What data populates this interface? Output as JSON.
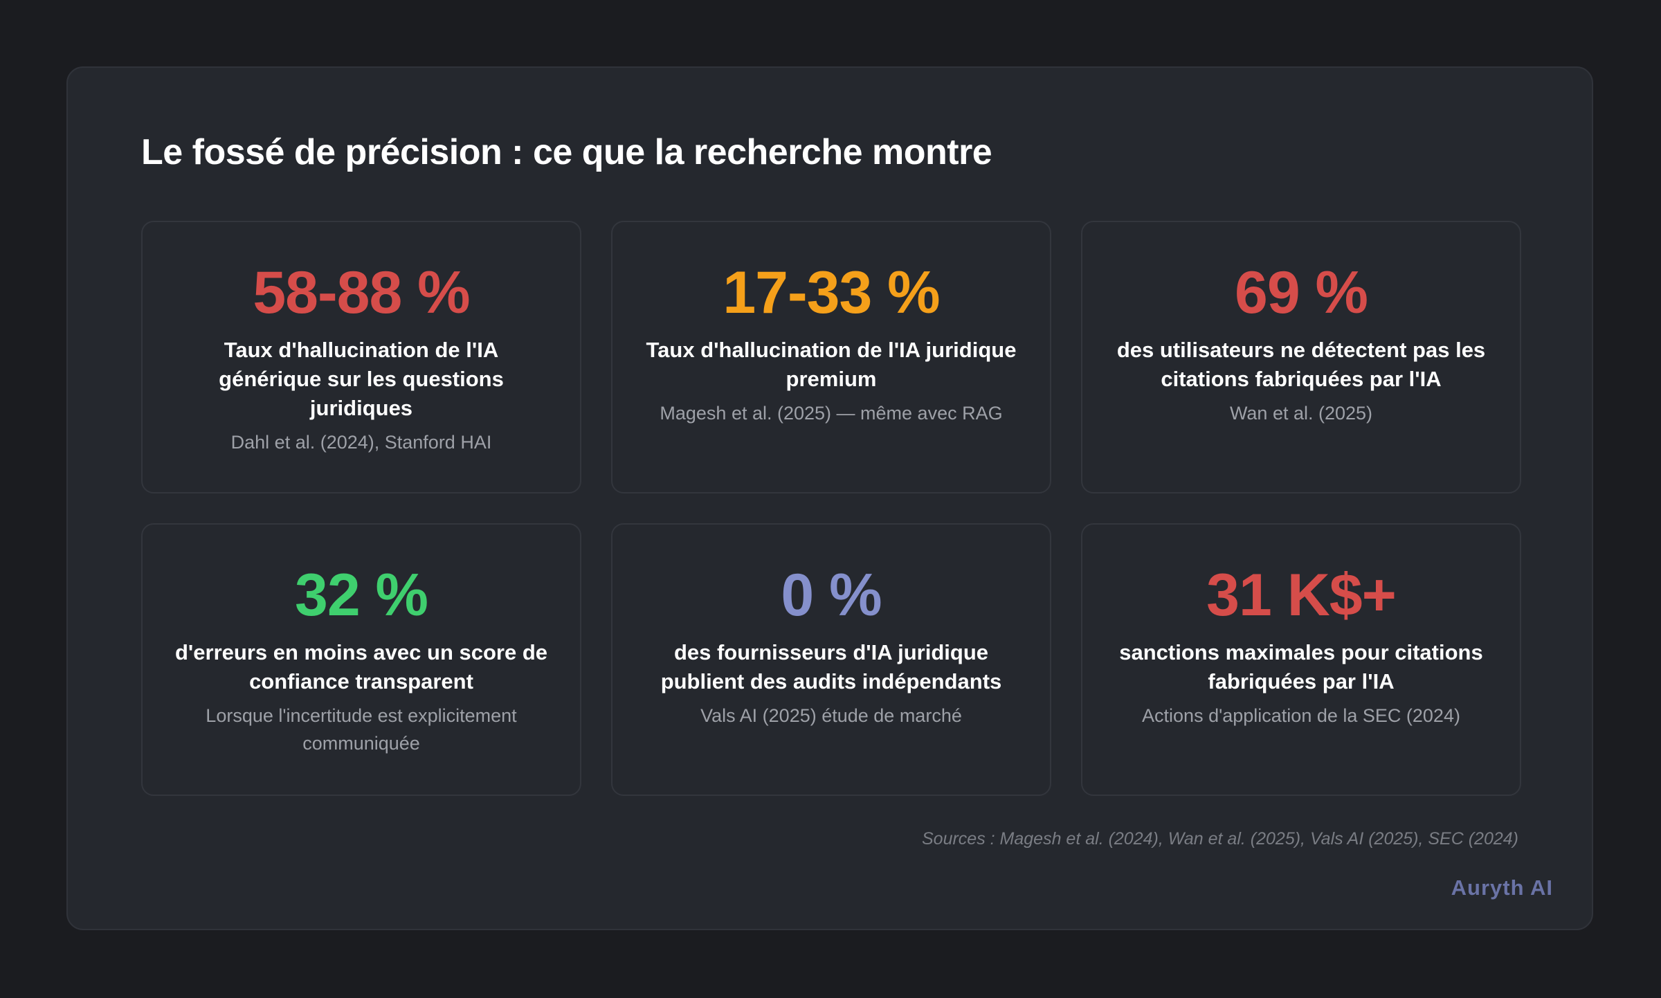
{
  "title": "Le fossé de précision : ce que la recherche montre",
  "colors": {
    "red": "#d64d4a",
    "orange": "#f5a01a",
    "green": "#3fcf6e",
    "slate": "#8590cc"
  },
  "cards": [
    {
      "value": "58-88 %",
      "color": "#d64d4a",
      "label": "Taux d'hallucination de l'IA générique sur les questions juridiques",
      "source": "Dahl et al. (2024), Stanford HAI"
    },
    {
      "value": "17-33 %",
      "color": "#f5a01a",
      "label": "Taux d'hallucination de l'IA juridique premium",
      "source": "Magesh et al. (2025) — même avec RAG"
    },
    {
      "value": "69 %",
      "color": "#d64d4a",
      "label": "des utilisateurs ne détectent pas les citations fabriquées par l'IA",
      "source": "Wan et al. (2025)"
    },
    {
      "value": "32 %",
      "color": "#3fcf6e",
      "label": "d'erreurs en moins avec un score de confiance transparent",
      "source": "Lorsque l'incertitude est explicitement communiquée"
    },
    {
      "value": "0 %",
      "color": "#8590cc",
      "label": "des fournisseurs d'IA juridique publient des audits indépendants",
      "source": "Vals AI (2025) étude de marché"
    },
    {
      "value": "31 K$+",
      "color": "#d64d4a",
      "label": "sanctions maximales pour citations fabriquées par l'IA",
      "source": "Actions d'application de la SEC (2024)"
    }
  ],
  "footer": {
    "sources": "Sources : Magesh et al. (2024), Wan et al. (2025), Vals AI (2025), SEC (2024)",
    "brand": "Auryth AI"
  }
}
